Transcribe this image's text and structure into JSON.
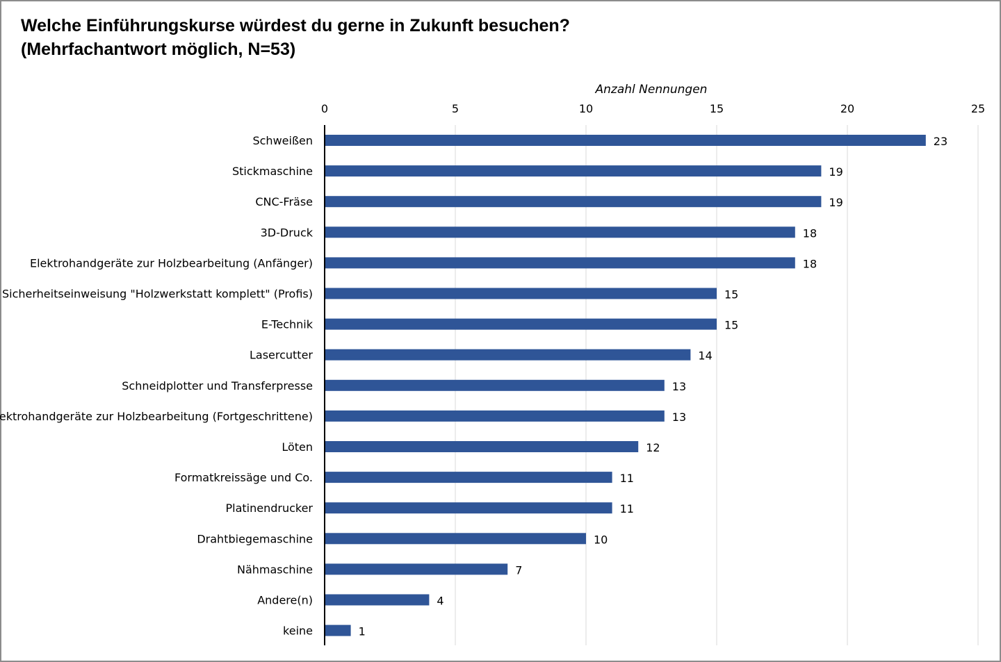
{
  "chart_data": {
    "type": "bar",
    "orientation": "horizontal",
    "title": "Welche Einführungskurse würdest du gerne in Zukunft besuchen?",
    "subtitle": "(Mehrfachantwort möglich, N=53)",
    "xlabel": "Anzahl Nennungen",
    "xaxis_position": "top",
    "xlim": [
      0,
      25
    ],
    "xticks": [
      0,
      5,
      10,
      15,
      20,
      25
    ],
    "grid": true,
    "legend": "none",
    "bar_color": "#2f5597",
    "categories": [
      "Schweißen",
      "Stickmaschine",
      "CNC-Fräse",
      "3D-Druck",
      "Elektrohandgeräte zur Holzbearbeitung (Anfänger)",
      "Sicherheitseinweisung \"Holzwerkstatt komplett\" (Profis)",
      "E-Technik",
      "Lasercutter",
      "Schneidplotter und Transferpresse",
      "Elektrohandgeräte zur Holzbearbeitung (Fortgeschrittene)",
      "Löten",
      "Formatkreissäge und Co.",
      "Platinendrucker",
      "Drahtbiegemaschine",
      "Nähmaschine",
      "Andere(n)",
      "keine"
    ],
    "values": [
      23,
      19,
      19,
      18,
      18,
      15,
      15,
      14,
      13,
      13,
      12,
      11,
      11,
      10,
      7,
      4,
      1
    ]
  }
}
